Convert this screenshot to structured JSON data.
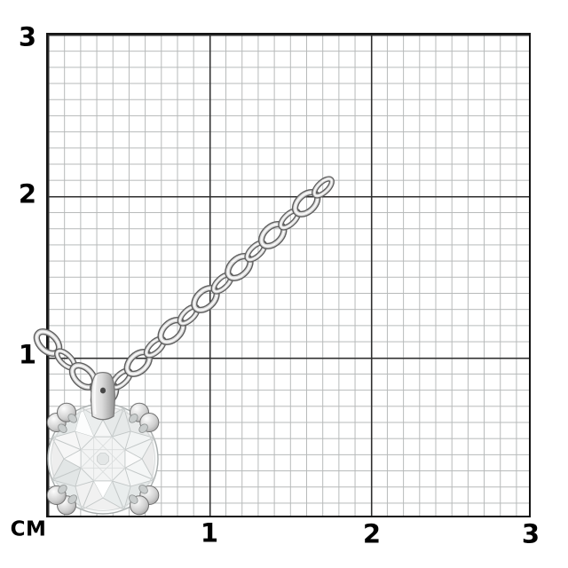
{
  "figure": {
    "unit_label": "СМ",
    "y_ticks": [
      "3",
      "2",
      "1"
    ],
    "x_ticks": [
      "1",
      "2",
      "3"
    ],
    "grid": {
      "range_cm": [
        0,
        3
      ],
      "major_step_cm": 1,
      "minor_step_cm": 0.1
    },
    "depicted_item": "diamond solitaire pendant on cable chain",
    "colors": {
      "background": "#ffffff",
      "grid-minor": "#b6b9b9",
      "grid-major": "#2e2e2e",
      "grid-border": "#141414",
      "label": "#000000",
      "metal-dark": "#5e5e5e",
      "metal-mid": "#d7d7d7",
      "metal-light": "#f8f8f8"
    }
  }
}
